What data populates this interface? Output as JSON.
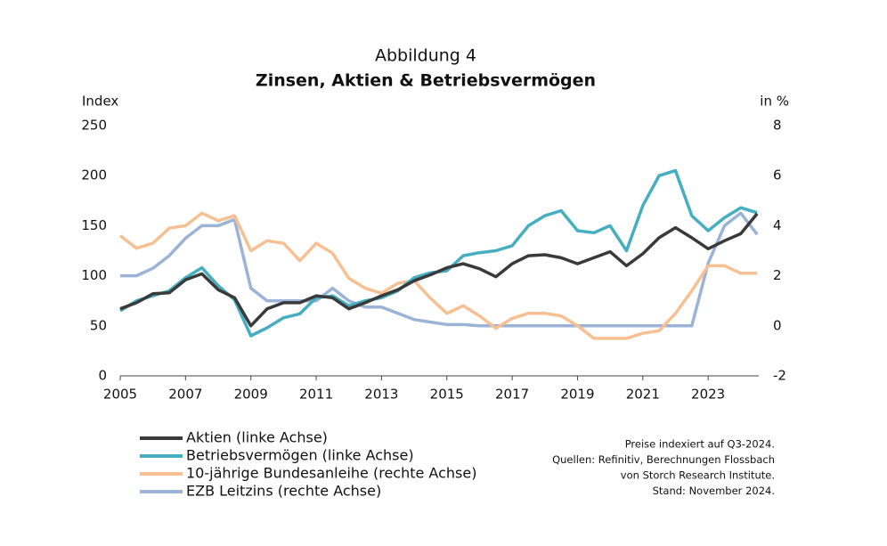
{
  "chart_data": {
    "type": "line",
    "title": "Abbildung 4",
    "subtitle": "Zinsen, Aktien & Betriebsvermögen",
    "y_label": "Index",
    "y2_label": "in %",
    "notes": [
      "Preise indexiert auf Q3-2024.",
      "Quellen: Refinitiv, Berechnungen Flossbach",
      "von Storch Research Institute.",
      "Stand: November 2024."
    ],
    "x": [
      2005,
      2005.5,
      2006,
      2006.5,
      2007,
      2007.5,
      2008,
      2008.5,
      2009,
      2009.5,
      2010,
      2010.5,
      2011,
      2011.5,
      2012,
      2012.5,
      2013,
      2013.5,
      2014,
      2014.5,
      2015,
      2015.5,
      2016,
      2016.5,
      2017,
      2017.5,
      2018,
      2018.5,
      2019,
      2019.5,
      2020,
      2020.5,
      2021,
      2021.5,
      2022,
      2022.5,
      2023,
      2023.5,
      2024,
      2024.5
    ],
    "xlim": [
      2005,
      2024.55
    ],
    "xticks": [
      2005,
      2007,
      2009,
      2011,
      2013,
      2015,
      2017,
      2019,
      2021,
      2023
    ],
    "ylim": [
      0,
      250
    ],
    "yticks": [
      0,
      50,
      100,
      150,
      200,
      250
    ],
    "y2lim": [
      -2,
      8
    ],
    "y2ticks": [
      -2,
      0,
      2,
      4,
      6,
      8
    ],
    "series": [
      {
        "name": "Aktien (linke Achse)",
        "color": "#3a3a3a",
        "values": [
          67,
          73,
          82,
          83,
          96,
          102,
          86,
          78,
          50,
          67,
          73,
          73,
          80,
          78,
          67,
          73,
          80,
          86,
          95,
          101,
          108,
          112,
          107,
          99,
          112,
          120,
          121,
          118,
          112,
          118,
          124,
          110,
          122,
          138,
          148,
          138,
          127,
          135,
          142,
          162
        ]
      },
      {
        "name": "Betriebsvermögen (linke Achse)",
        "color": "#45aec0",
        "values": [
          65,
          75,
          80,
          85,
          98,
          108,
          90,
          76,
          40,
          48,
          58,
          62,
          78,
          80,
          70,
          75,
          78,
          85,
          98,
          103,
          105,
          120,
          123,
          125,
          130,
          150,
          160,
          165,
          145,
          143,
          150,
          125,
          170,
          200,
          205,
          160,
          145,
          158,
          168,
          163
        ]
      },
      {
        "name": "10-jährige Bundesanleihe (rechte Achse)",
        "color": "#f7c092",
        "axis": "y2",
        "values": [
          3.6,
          3.1,
          3.3,
          3.9,
          4.0,
          4.5,
          4.2,
          4.4,
          3.0,
          3.4,
          3.3,
          2.6,
          3.3,
          2.9,
          1.9,
          1.5,
          1.3,
          1.7,
          1.8,
          1.1,
          0.5,
          0.8,
          0.4,
          -0.1,
          0.3,
          0.5,
          0.5,
          0.4,
          0.0,
          -0.5,
          -0.5,
          -0.5,
          -0.3,
          -0.2,
          0.5,
          1.4,
          2.4,
          2.4,
          2.1,
          2.1
        ]
      },
      {
        "name": "EZB Leitzins (rechte Achse)",
        "color": "#9bb3d6",
        "axis": "y2",
        "values": [
          2.0,
          2.0,
          2.3,
          2.8,
          3.5,
          4.0,
          4.0,
          4.25,
          1.5,
          1.0,
          1.0,
          1.0,
          1.0,
          1.5,
          1.0,
          0.75,
          0.75,
          0.5,
          0.25,
          0.15,
          0.05,
          0.05,
          0.0,
          0.0,
          0.0,
          0.0,
          0.0,
          0.0,
          0.0,
          0.0,
          0.0,
          0.0,
          0.0,
          0.0,
          0.0,
          0.0,
          2.5,
          4.0,
          4.5,
          3.65
        ]
      }
    ]
  }
}
